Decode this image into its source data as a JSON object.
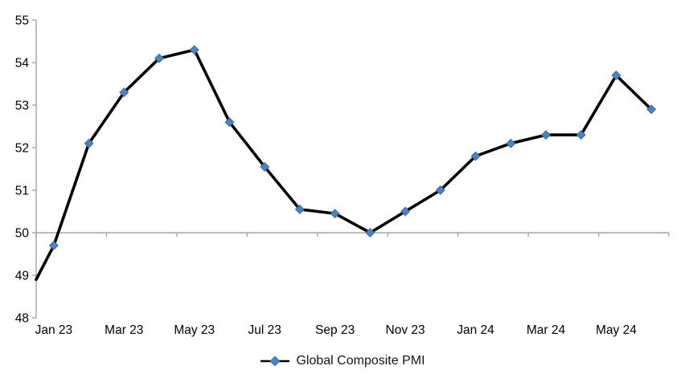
{
  "chart_data": {
    "type": "line",
    "title": "",
    "categories": [
      "Jan 23",
      "Feb 23",
      "Mar 23",
      "Apr 23",
      "May 23",
      "Jun 23",
      "Jul 23",
      "Aug 23",
      "Sep 23",
      "Oct 23",
      "Nov 23",
      "Dec 23",
      "Jan 24",
      "Feb 24",
      "Mar 24",
      "Apr 24",
      "May 24",
      "Jun 24"
    ],
    "series": [
      {
        "name": "Global Composite PMI",
        "values": [
          49.7,
          52.1,
          53.3,
          54.1,
          54.3,
          52.6,
          51.55,
          50.55,
          50.45,
          50.0,
          50.5,
          51.0,
          51.8,
          52.1,
          52.3,
          52.3,
          53.7,
          52.9
        ],
        "marker": "diamond"
      }
    ],
    "lead_in_value_at_left_edge": 48.9,
    "x_axis": {
      "tick_labels": [
        "Jan 23",
        "Mar 23",
        "May 23",
        "Jul 23",
        "Sep 23",
        "Nov 23",
        "Jan 24",
        "Mar 24",
        "May 24"
      ],
      "label_every": 2,
      "axis_crosses_at": 50
    },
    "y_axis": {
      "min": 48,
      "max": 55,
      "tick_interval": 1,
      "tick_labels": [
        "48",
        "49",
        "50",
        "51",
        "52",
        "53",
        "54",
        "55"
      ]
    },
    "grid": "off",
    "legend_position": "bottom"
  },
  "legend": {
    "label": "Global Composite PMI"
  },
  "colors": {
    "axis": "#a6a6a6",
    "line": "#000000",
    "marker_fill": "#4f81bd",
    "marker_stroke": "#3f6c9e",
    "text": "#000000",
    "background": "#ffffff"
  }
}
